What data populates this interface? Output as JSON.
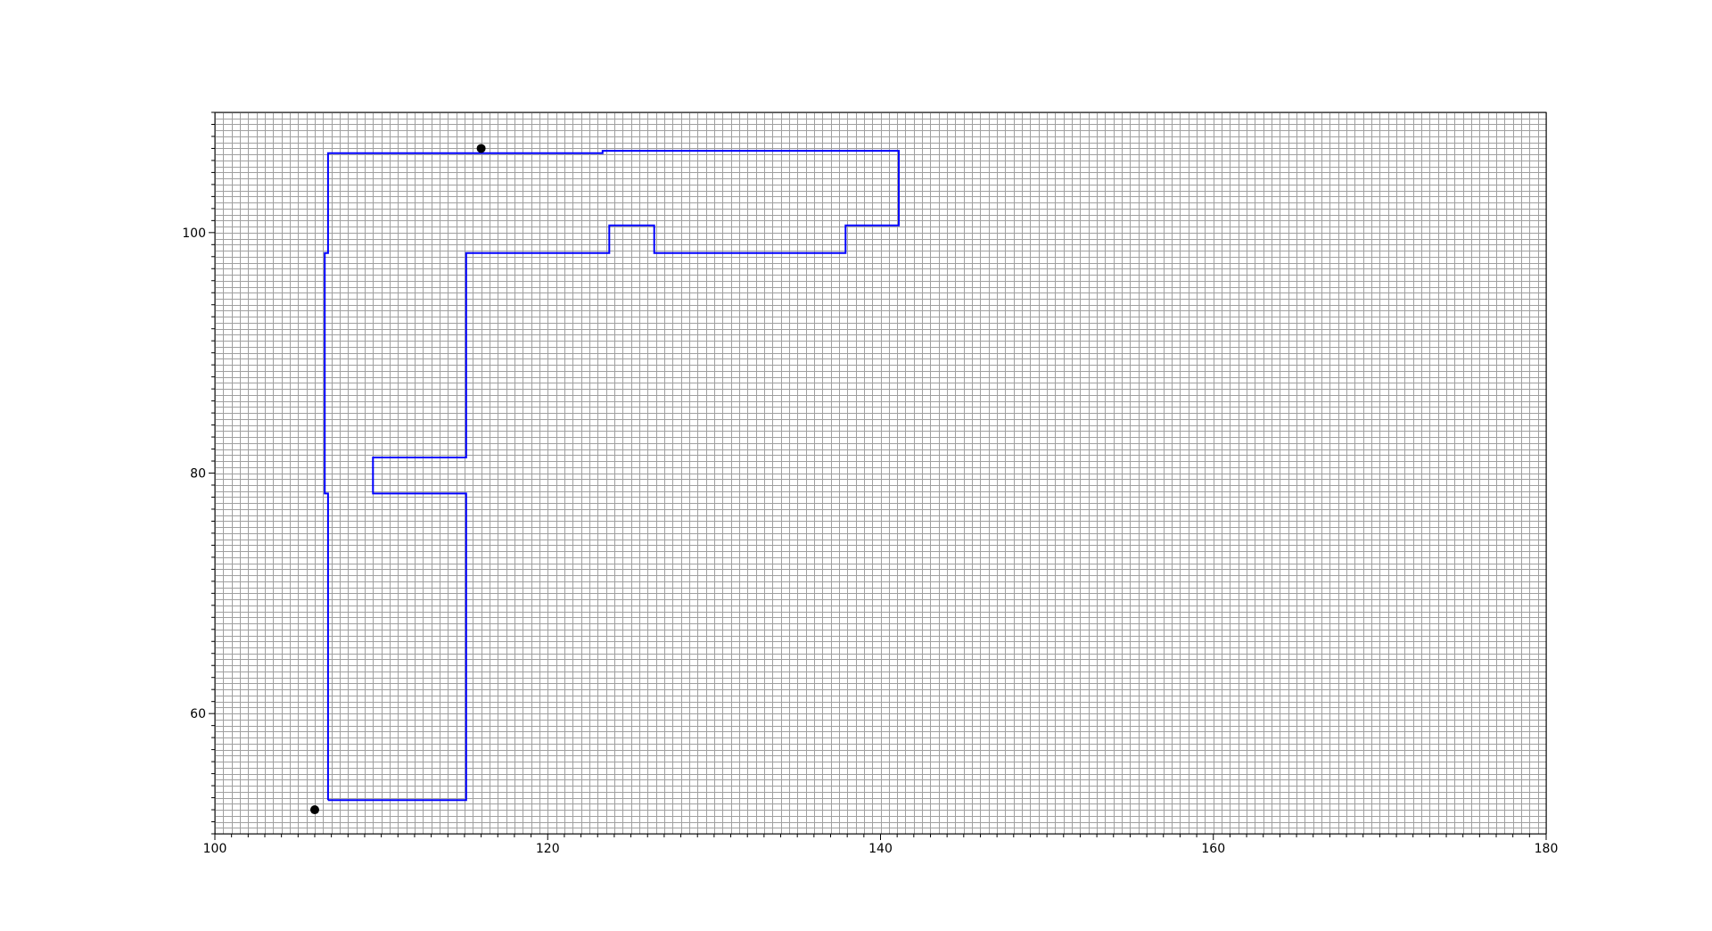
{
  "chart_data": {
    "type": "line",
    "title": "",
    "xlabel": "",
    "ylabel": "",
    "xlim": [
      100,
      180
    ],
    "ylim": [
      50,
      110
    ],
    "grid": true,
    "grid_minor_step": 0.5,
    "grid_color": "#a0a0a0",
    "x_tick_labels": [
      "100",
      "120",
      "140",
      "160",
      "180"
    ],
    "y_tick_labels": [
      "60",
      "80",
      "100"
    ],
    "series": [
      {
        "color": "#0000ff",
        "points": [
          [
            106.8,
            52.8
          ],
          [
            115.1,
            52.8
          ],
          [
            115.1,
            78.3
          ],
          [
            109.5,
            78.3
          ],
          [
            109.5,
            81.3
          ],
          [
            115.1,
            81.3
          ],
          [
            115.1,
            98.3
          ],
          [
            123.7,
            98.3
          ],
          [
            123.7,
            100.6
          ],
          [
            126.4,
            100.6
          ],
          [
            126.4,
            98.3
          ],
          [
            137.9,
            98.3
          ],
          [
            137.9,
            100.6
          ],
          [
            141.1,
            100.6
          ],
          [
            141.1,
            106.8
          ],
          [
            123.3,
            106.8
          ],
          [
            123.3,
            106.6
          ],
          [
            106.8,
            106.6
          ],
          [
            106.8,
            98.3
          ],
          [
            106.6,
            98.3
          ],
          [
            106.6,
            78.3
          ],
          [
            106.8,
            78.3
          ],
          [
            106.8,
            52.8
          ]
        ]
      }
    ],
    "markers": [
      {
        "x": 106.0,
        "y": 52.0,
        "color": "#000000"
      },
      {
        "x": 116.0,
        "y": 107.0,
        "color": "#000000"
      }
    ]
  }
}
